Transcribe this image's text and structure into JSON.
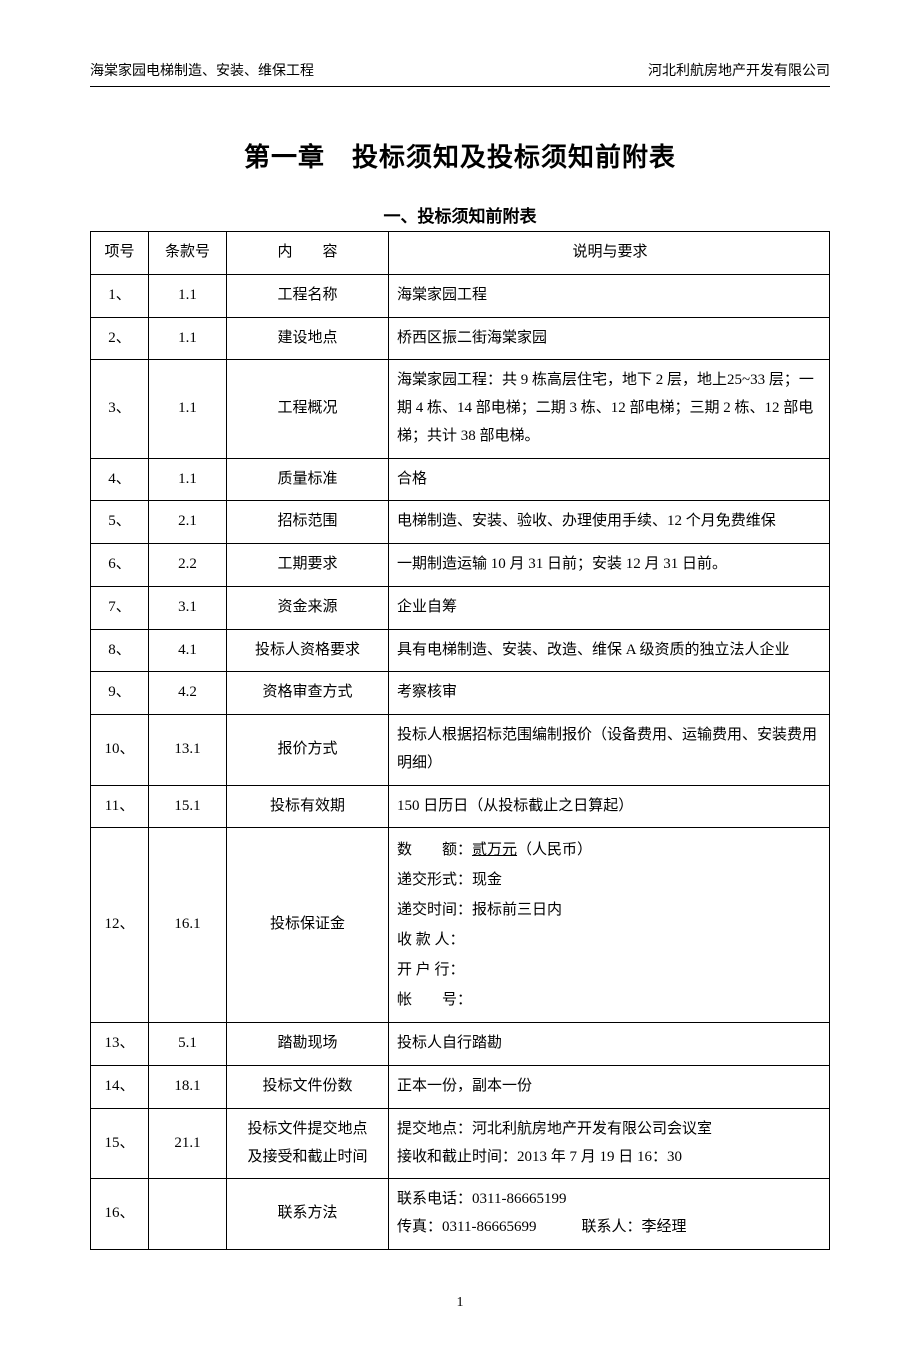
{
  "header": {
    "left": "海棠家园电梯制造、安装、维保工程",
    "right": "河北利航房地产开发有限公司"
  },
  "chapter_title": "第一章　投标须知及投标须知前附表",
  "section_title": "一、投标须知前附表",
  "table": {
    "headers": {
      "num": "项号",
      "clause": "条款号",
      "content_label": "内　　容",
      "desc": "说明与要求"
    },
    "rows": [
      {
        "num": "1、",
        "clause": "1.1",
        "content": "工程名称",
        "desc": "海棠家园工程"
      },
      {
        "num": "2、",
        "clause": "1.1",
        "content": "建设地点",
        "desc": "桥西区振二街海棠家园"
      },
      {
        "num": "3、",
        "clause": "1.1",
        "content": "工程概况",
        "desc": "海棠家园工程：共 9 栋高层住宅，地下 2 层，地上25~33 层；一期 4 栋、14 部电梯；二期 3 栋、12 部电梯；三期 2 栋、12 部电梯；共计 38 部电梯。"
      },
      {
        "num": "4、",
        "clause": "1.1",
        "content": "质量标准",
        "desc": "合格"
      },
      {
        "num": "5、",
        "clause": "2.1",
        "content": "招标范围",
        "desc": "电梯制造、安装、验收、办理使用手续、12 个月免费维保"
      },
      {
        "num": "6、",
        "clause": "2.2",
        "content": "工期要求",
        "desc": "一期制造运输 10 月 31 日前；安装 12 月 31 日前。"
      },
      {
        "num": "7、",
        "clause": "3.1",
        "content": "资金来源",
        "desc": "企业自筹"
      },
      {
        "num": "8、",
        "clause": "4.1",
        "content": "投标人资格要求",
        "desc": "具有电梯制造、安装、改造、维保 A 级资质的独立法人企业"
      },
      {
        "num": "9、",
        "clause": "4.2",
        "content": "资格审查方式",
        "desc": "考察核审"
      },
      {
        "num": "10、",
        "clause": "13.1",
        "content": "报价方式",
        "desc": "投标人根据招标范围编制报价（设备费用、运输费用、安装费用明细）"
      },
      {
        "num": "11、",
        "clause": "15.1",
        "content": "投标有效期",
        "desc": "150 日历日（从投标截止之日算起）"
      },
      {
        "num": "12、",
        "clause": "16.1",
        "content": "投标保证金",
        "desc_lines": {
          "amount_label": "数　　额：",
          "amount_value": "贰万元",
          "amount_suffix": "（人民币）",
          "form": "递交形式：现金",
          "time": "递交时间：报标前三日内",
          "payee": "收 款 人：",
          "bank": "开 户 行：",
          "account": "帐　　号："
        }
      },
      {
        "num": "13、",
        "clause": "5.1",
        "content": "踏勘现场",
        "desc": "投标人自行踏勘"
      },
      {
        "num": "14、",
        "clause": "18.1",
        "content": "投标文件份数",
        "desc": "正本一份，副本一份"
      },
      {
        "num": "15、",
        "clause": "21.1",
        "content_lines": [
          "投标文件提交地点",
          "及接受和截止时间"
        ],
        "desc_lines_arr": [
          "提交地点：河北利航房地产开发有限公司会议室",
          "接收和截止时间：2013 年 7 月 19 日 16：30"
        ]
      },
      {
        "num": "16、",
        "clause": "",
        "content": "联系方法",
        "desc_contact": {
          "phone": "联系电话：0311-86665199",
          "fax": "传真：0311-86665699",
          "contact": "联系人：李经理"
        }
      }
    ]
  },
  "page_number": "1"
}
